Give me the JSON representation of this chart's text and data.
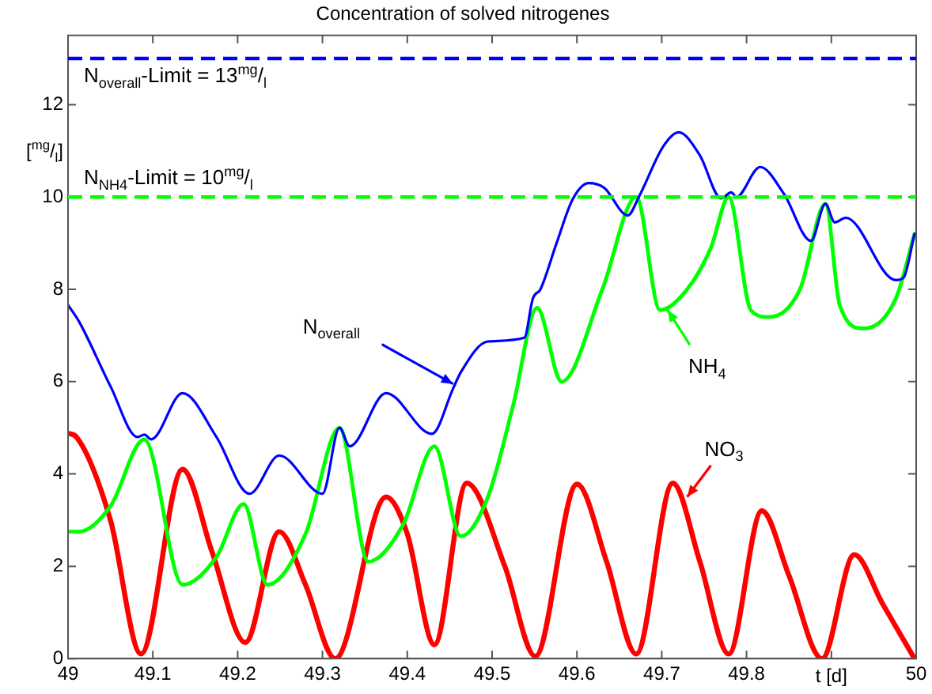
{
  "chart_data": {
    "type": "line",
    "title": "Concentration of solved nitrogenes",
    "xlabel": "t [d]",
    "ylabel": "[$^{mg}$/$_{l}$]",
    "xlim": [
      49,
      50
    ],
    "xticks": [
      49,
      49.1,
      49.2,
      49.3,
      49.4,
      49.5,
      49.6,
      49.7,
      49.8,
      {
        "value": 49.9,
        "label": null
      },
      50
    ],
    "ylim": [
      0,
      13.5
    ],
    "yticks": [
      0,
      2,
      4,
      6,
      8,
      10,
      12
    ],
    "grid": false,
    "legend": false,
    "marker": "none",
    "line_style": "solid",
    "series": [
      {
        "color": "#0000ff",
        "x": [
          49,
          49.013,
          49.05,
          49.082,
          49.09,
          49.098,
          49.135,
          49.175,
          49.214,
          49.249,
          49.3,
          49.32,
          49.332,
          49.375,
          49.429,
          49.454,
          49.463,
          49.495,
          49.538,
          49.548,
          49.557,
          49.576,
          49.595,
          49.614,
          49.632,
          49.66,
          49.673,
          49.702,
          49.72,
          49.745,
          49.77,
          49.782,
          49.788,
          49.816,
          49.844,
          49.876,
          49.893,
          49.904,
          49.917,
          49.976,
          49.985,
          49.998
        ],
        "values": [
          7.66,
          7.3,
          5.9,
          4.8,
          4.85,
          4.75,
          5.75,
          4.8,
          3.57,
          4.4,
          3.57,
          5.0,
          4.6,
          5.75,
          4.87,
          5.85,
          6.2,
          6.87,
          6.95,
          7.8,
          8.0,
          9.0,
          9.95,
          10.3,
          10.2,
          9.6,
          10.0,
          11.1,
          11.4,
          10.9,
          9.97,
          10.1,
          10.0,
          10.65,
          10.07,
          9.05,
          9.85,
          9.45,
          9.55,
          8.2,
          8.25,
          9.2
        ]
      },
      {
        "color": "#00ff00",
        "x": [
          49,
          49.013,
          49.05,
          49.09,
          49.135,
          49.175,
          49.207,
          49.235,
          49.28,
          49.32,
          49.354,
          49.395,
          49.432,
          49.463,
          49.495,
          49.525,
          49.553,
          49.582,
          49.63,
          49.67,
          49.698,
          49.73,
          49.758,
          49.779,
          49.805,
          49.826,
          49.863,
          49.893,
          49.91,
          49.938,
          49.976,
          49.998
        ],
        "values": [
          2.75,
          2.75,
          3.3,
          4.75,
          1.6,
          2.2,
          3.35,
          1.6,
          2.7,
          5.0,
          2.1,
          2.9,
          4.6,
          2.65,
          3.5,
          5.5,
          7.6,
          6.0,
          8.0,
          10.0,
          7.55,
          8.0,
          8.9,
          10.0,
          7.55,
          7.4,
          8.0,
          9.85,
          7.65,
          7.15,
          7.8,
          9.2
        ]
      },
      {
        "color": "#ff0000",
        "x": [
          49,
          49.01,
          49.05,
          49.086,
          49.135,
          49.17,
          49.209,
          49.249,
          49.28,
          49.315,
          49.375,
          49.4,
          49.432,
          49.47,
          49.515,
          49.551,
          49.6,
          49.635,
          49.67,
          49.713,
          49.745,
          49.779,
          49.818,
          49.85,
          49.889,
          49.927,
          49.96,
          49.998
        ],
        "values": [
          4.88,
          4.8,
          3.0,
          0.1,
          4.1,
          2.3,
          0.35,
          2.75,
          1.6,
          0,
          3.5,
          2.7,
          0.3,
          3.8,
          2.0,
          0.05,
          3.78,
          2.1,
          0.1,
          3.8,
          2.1,
          0.1,
          3.2,
          1.8,
          0,
          2.25,
          1.2,
          0
        ]
      }
    ],
    "ref_lines": [
      {
        "axis": "y",
        "value": 13,
        "label": "N$_{overall}$-Limit = 13$^{mg}$/$_{l}$",
        "color": "#0000ff",
        "line_style": "dashed"
      },
      {
        "axis": "y",
        "value": 10,
        "label": "N$_{NH4}$-Limit = 10$^{mg}$/$_{l}$",
        "color": "#00ff00",
        "line_style": "dashed"
      }
    ],
    "annotations": [
      {
        "text": "N$_{overall}$",
        "x": 49.454,
        "y": 5.95
      },
      {
        "text": "NH$_{4}$",
        "x": 49.707,
        "y": 7.55
      },
      {
        "text": "NO$_{3}$",
        "x": 49.73,
        "y": 3.5
      }
    ]
  }
}
